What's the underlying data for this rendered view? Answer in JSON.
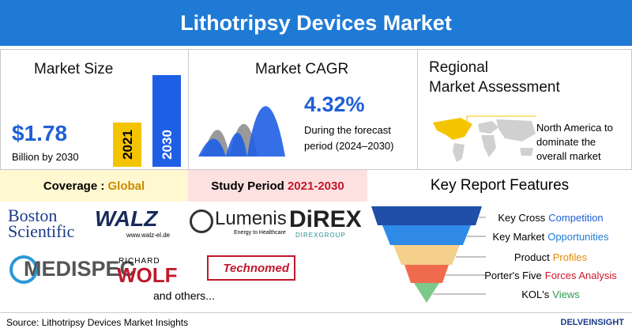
{
  "header": {
    "title": "Lithotripsy Devices Market"
  },
  "market_size": {
    "heading": "Market Size",
    "value": "$1.78",
    "note": "Billion by 2030",
    "bars": [
      "2021",
      "2030"
    ]
  },
  "market_cagr": {
    "heading": "Market CAGR",
    "value": "4.32%",
    "note_line1": "During the forecast",
    "note_line2": "period (2024–2030)"
  },
  "regional": {
    "heading_line1": "Regional",
    "heading_line2": "Market Assessment",
    "note_line1": "North America to",
    "note_line2": "dominate the",
    "note_line3": "overall market"
  },
  "coverage": {
    "label": "Coverage :",
    "value": "Global"
  },
  "study_period": {
    "label": "Study Period",
    "value": "2021-2030"
  },
  "features": {
    "heading": "Key Report Features",
    "items": [
      {
        "text": "Key Cross",
        "highlight": "Competition"
      },
      {
        "text": "Key Market",
        "highlight": "Opportunities"
      },
      {
        "text": "Product",
        "highlight": "Profiles"
      },
      {
        "text": "Porter's Five",
        "highlight": "Forces Analysis"
      },
      {
        "text": "KOL's",
        "highlight": "Views"
      }
    ]
  },
  "companies": {
    "boston_1": "Boston",
    "boston_2": "Scientific",
    "walz": "WALZ",
    "walz_url": "www.walz-el.de",
    "lumenis": "Lumenis",
    "lumenis_tag": "Energy to Healthcare",
    "direx": "DiREX",
    "direx_group": "DIREXGROUP",
    "medispec": "MEDISPEC",
    "richard": "RICHARD",
    "wolf": "WOLF",
    "technomed": "Technomed",
    "others": "and others..."
  },
  "footer": {
    "source": "Source: Lithotripsy Devices Market Insights",
    "brand": "DELVEINSIGHT"
  }
}
